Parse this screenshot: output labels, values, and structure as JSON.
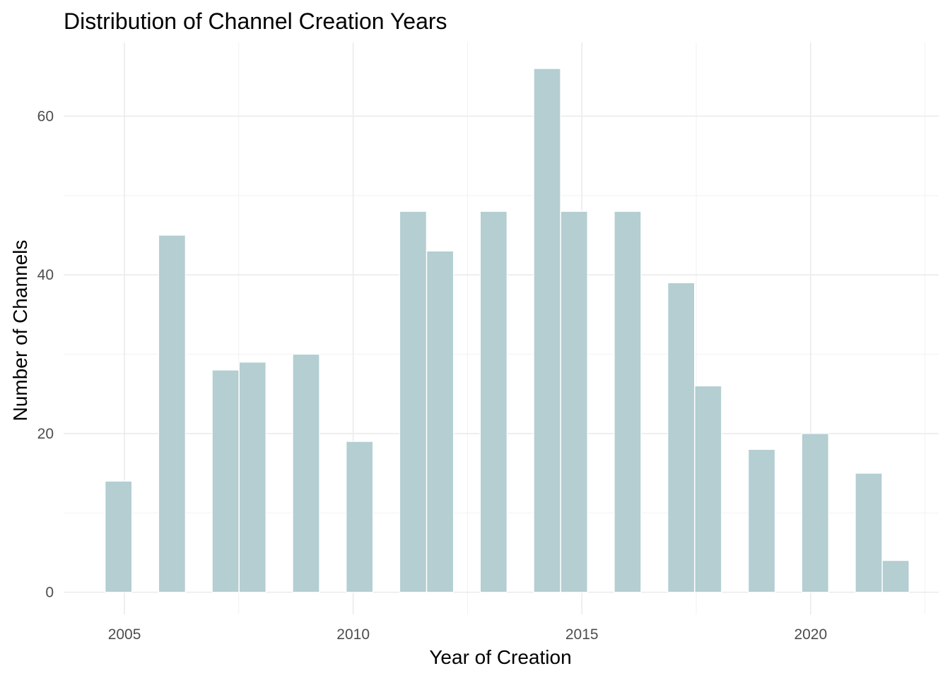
{
  "chart_data": {
    "type": "bar",
    "title": "Distribution of Channel Creation Years",
    "xlabel": "Year of Creation",
    "ylabel": "Number of Channels",
    "x_ticks": [
      2005,
      2010,
      2015,
      2020
    ],
    "y_ticks": [
      0,
      20,
      40,
      60
    ],
    "xlim": [
      2003.67,
      2022.8
    ],
    "ylim": [
      -2.8,
      69.3
    ],
    "grid": true,
    "bar_color": "#b4ced2",
    "bins": [
      {
        "x": 2004.87,
        "value": 14
      },
      {
        "x": 2006.04,
        "value": 45
      },
      {
        "x": 2007.21,
        "value": 28
      },
      {
        "x": 2007.8,
        "value": 29
      },
      {
        "x": 2008.97,
        "value": 30
      },
      {
        "x": 2010.14,
        "value": 19
      },
      {
        "x": 2011.31,
        "value": 48
      },
      {
        "x": 2011.9,
        "value": 43
      },
      {
        "x": 2013.07,
        "value": 48
      },
      {
        "x": 2014.24,
        "value": 66
      },
      {
        "x": 2014.83,
        "value": 48
      },
      {
        "x": 2016.0,
        "value": 48
      },
      {
        "x": 2017.17,
        "value": 39
      },
      {
        "x": 2017.76,
        "value": 26
      },
      {
        "x": 2018.93,
        "value": 18
      },
      {
        "x": 2020.1,
        "value": 20
      },
      {
        "x": 2021.27,
        "value": 15
      },
      {
        "x": 2021.86,
        "value": 4
      }
    ],
    "bin_width": 0.585
  }
}
